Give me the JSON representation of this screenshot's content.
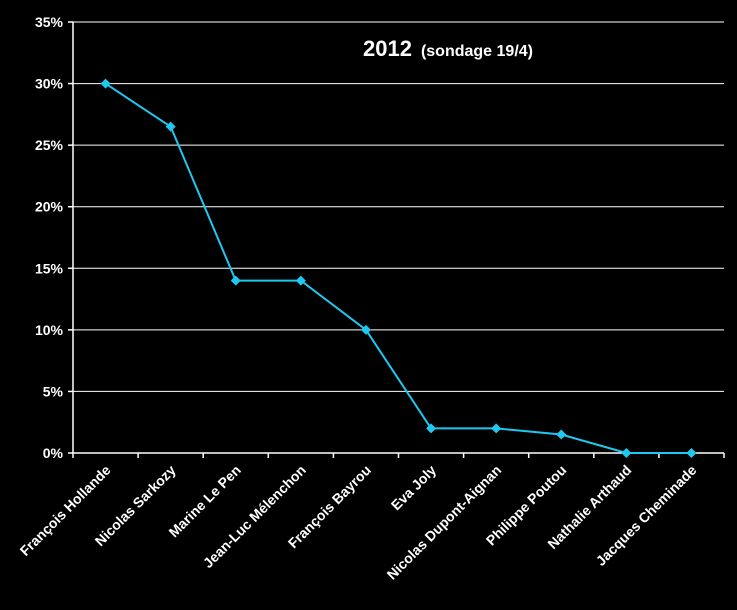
{
  "chart_data": {
    "type": "line",
    "title": "2012",
    "subtitle": "(sondage 19/4)",
    "xlabel": "",
    "ylabel": "",
    "categories": [
      "François Hollande",
      "Nicolas Sarkozy",
      "Marine Le Pen",
      "Jean-Luc Mélenchon",
      "François Bayrou",
      "Eva Joly",
      "Nicolas Dupont-Aignan",
      "Philippe Poutou",
      "Nathalie Arthaud",
      "Jacques Cheminade"
    ],
    "series": [
      {
        "values": [
          30,
          26.5,
          14,
          14,
          10,
          2,
          2,
          1.5,
          0,
          0
        ]
      }
    ],
    "ylim": [
      0,
      35
    ],
    "yticks": [
      0,
      5,
      10,
      15,
      20,
      25,
      30,
      35
    ],
    "ytick_labels": [
      "0%",
      "5%",
      "10%",
      "15%",
      "20%",
      "25%",
      "30%",
      "35%"
    ],
    "grid": true,
    "legend": "none",
    "colors": {
      "background": "#000000",
      "line": "#1ec8f0",
      "marker": "#1ec8f0",
      "grid": "#ffffff",
      "text": "#ffffff"
    }
  }
}
